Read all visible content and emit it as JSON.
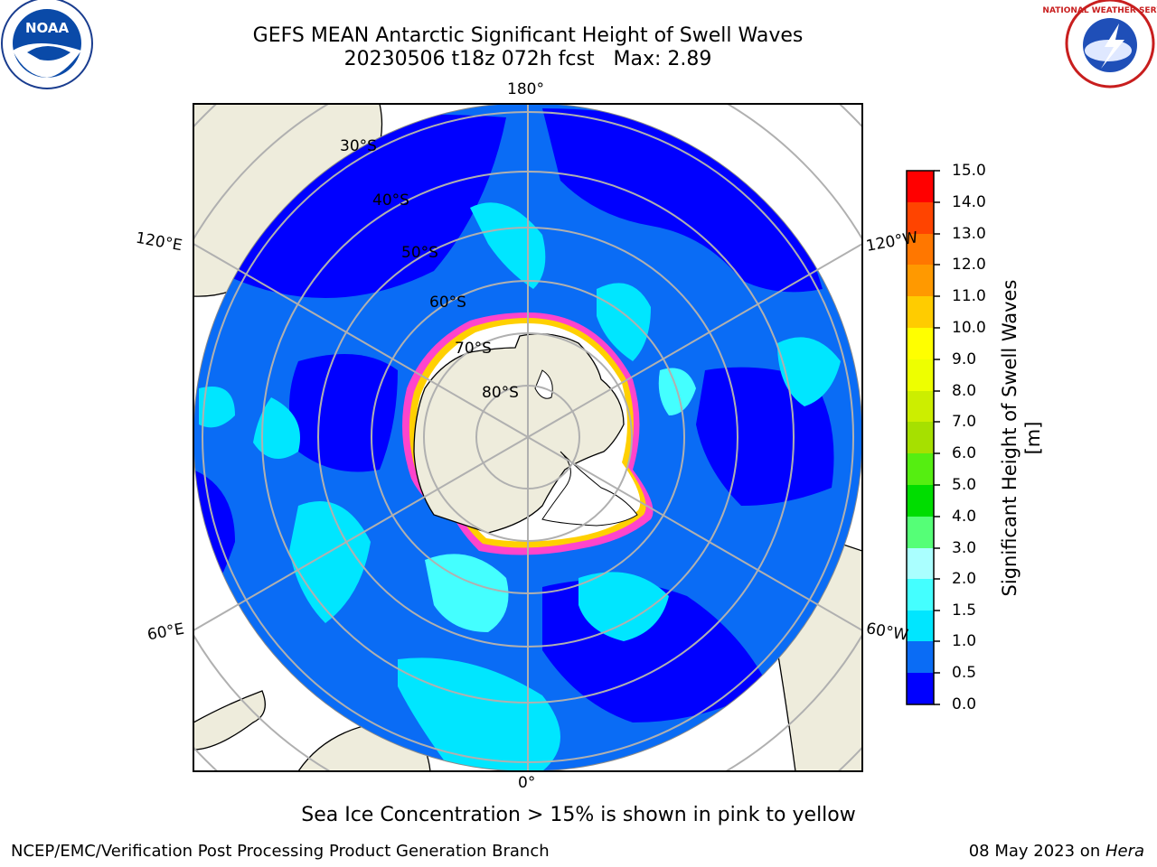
{
  "header": {
    "title_line1": "GEFS MEAN Antarctic Significant Height of Swell Waves",
    "title_line2": "20230506 t18z 072h fcst   Max: 2.89"
  },
  "logos": {
    "left": "noaa-logo",
    "right": "national-weather-service-logo"
  },
  "map": {
    "projection": "south polar stereographic",
    "longitude_labels": {
      "top": "180°",
      "bottom": "0°",
      "left_upper": "120°E",
      "left_lower": "60°E",
      "right_upper": "120°W",
      "right_lower": "60°W"
    },
    "latitude_labels": [
      "30°S",
      "40°S",
      "50°S",
      "60°S",
      "70°S",
      "80°S"
    ],
    "colors": {
      "land": "#eeecdc",
      "sea_ice_free": "#ffffff",
      "grid": "#b0b0b0"
    }
  },
  "colorbar": {
    "label": "Significant Height of Swell Waves [m]",
    "ticks": [
      "0.0",
      "0.5",
      "1.0",
      "1.5",
      "2.0",
      "3.0",
      "4.0",
      "5.0",
      "6.0",
      "7.0",
      "8.0",
      "9.0",
      "10.0",
      "11.0",
      "12.0",
      "13.0",
      "14.0",
      "15.0"
    ],
    "colors": [
      "#0000ff",
      "#0a6cf5",
      "#00e6ff",
      "#44ffff",
      "#aaffff",
      "#55ff77",
      "#00dd00",
      "#55ee11",
      "#a6e000",
      "#ccee00",
      "#eeff00",
      "#ffff00",
      "#ffcc00",
      "#ff9900",
      "#ff7700",
      "#ff4400",
      "#ff0000"
    ]
  },
  "notes": {
    "sea_ice": "Sea Ice Concentration > 15% is shown in pink to yellow"
  },
  "footer": {
    "left": "NCEP/EMC/Verification Post Processing Product Generation Branch",
    "right_prefix": "08 May 2023 on ",
    "right_host": "Hera"
  }
}
